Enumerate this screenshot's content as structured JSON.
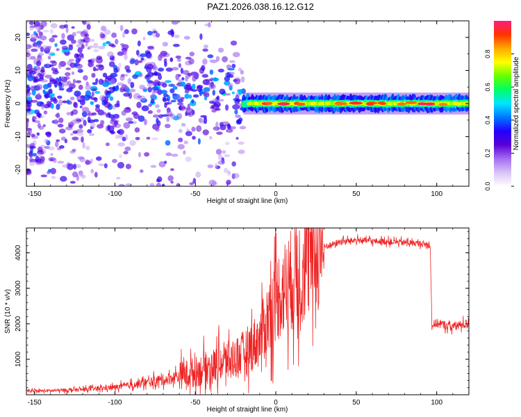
{
  "title": "PAZ1.2026.038.16.12.G12",
  "chart_data": [
    {
      "type": "heatmap",
      "xlabel": "Height of straight line (km)",
      "ylabel": "Frequency (Hz)",
      "xlim": [
        -155,
        120
      ],
      "ylim": [
        -25,
        25
      ],
      "xticks": [
        -150,
        -100,
        -50,
        0,
        50,
        100
      ],
      "yticks": [
        -20,
        -10,
        0,
        10,
        20
      ],
      "colorbar": {
        "label": "Normalized spectral amplitude",
        "range": [
          0.0,
          1.0
        ],
        "ticks": [
          "0.0",
          "0.2",
          "0.4",
          "0.6",
          "0.8"
        ],
        "colormap": [
          "#ffffff",
          "#d9c3f5",
          "#a36df0",
          "#5a00d6",
          "#2200ff",
          "#0077ff",
          "#00e5ff",
          "#00ff66",
          "#66ff00",
          "#ffff00",
          "#ffaa00",
          "#ff3300",
          "#ff1a80"
        ]
      },
      "features": [
        {
          "description": "scattered noise blobs",
          "x_range": [
            -155,
            -20
          ],
          "freq_range": [
            -25,
            25
          ]
        },
        {
          "description": "coherent carrier band",
          "x_range": [
            -20,
            120
          ],
          "freq_center": 0,
          "freq_halfwidth": 1.5
        }
      ]
    },
    {
      "type": "line",
      "xlabel": "Height of straight line (km)",
      "ylabel": "SNR (10 * v/v)",
      "xlim": [
        -155,
        120
      ],
      "ylim": [
        0,
        4700
      ],
      "xticks": [
        -150,
        -100,
        -50,
        0,
        50,
        100
      ],
      "yticks": [
        1000,
        2000,
        3000,
        4000
      ],
      "series": [
        {
          "name": "SNR",
          "color": "#ee2222",
          "x": [
            -155,
            -140,
            -120,
            -100,
            -90,
            -80,
            -70,
            -60,
            -50,
            -40,
            -30,
            -20,
            -10,
            0,
            10,
            20,
            30,
            40,
            50,
            60,
            70,
            80,
            90,
            96,
            97,
            100,
            110,
            120
          ],
          "y": [
            100,
            110,
            140,
            200,
            260,
            330,
            400,
            500,
            600,
            750,
            900,
            1100,
            1500,
            2600,
            3100,
            3600,
            4150,
            4300,
            4350,
            4320,
            4300,
            4280,
            4250,
            4200,
            1950,
            2000,
            1900,
            2000
          ]
        }
      ]
    }
  ]
}
